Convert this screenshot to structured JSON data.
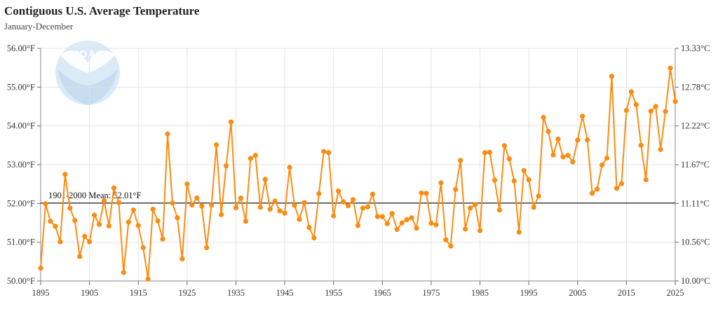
{
  "header": {
    "title": "Contiguous U.S. Average Temperature",
    "subtitle": "January-December"
  },
  "logo": {
    "text": "NOAA"
  },
  "colors": {
    "series": "#fb8c11",
    "mean_line": "#444444",
    "grid": "#e3e3e3",
    "logo": "#dbeaf7"
  },
  "chart_data": {
    "type": "line",
    "title": "Contiguous U.S. Average Temperature",
    "subtitle": "January-December",
    "x_ticks": [
      "1895",
      "1905",
      "1915",
      "1925",
      "1935",
      "1945",
      "1955",
      "1965",
      "1975",
      "1985",
      "1995",
      "2005",
      "2015",
      "2025"
    ],
    "y_left_ticks": [
      "50.00°F",
      "51.00°F",
      "52.00°F",
      "53.00°F",
      "54.00°F",
      "55.00°F",
      "56.00°F"
    ],
    "y_right_ticks": [
      "10.00°C",
      "10.56°C",
      "11.11°C",
      "11.67°C",
      "12.22°C",
      "12.78°C",
      "13.33°C"
    ],
    "xlim": [
      1895,
      2025
    ],
    "ylim": [
      50,
      56
    ],
    "grid": true,
    "mean": {
      "value": 52.01,
      "label": "1901-2000 Mean: 52.01°F"
    },
    "start_year": 1895,
    "values": [
      50.33,
      51.99,
      51.54,
      51.41,
      51.01,
      52.75,
      51.88,
      51.56,
      50.63,
      51.15,
      51.01,
      51.7,
      51.46,
      52.07,
      51.42,
      52.4,
      52.02,
      50.22,
      51.52,
      51.83,
      51.43,
      50.86,
      50.05,
      51.85,
      51.55,
      51.08,
      53.79,
      52.01,
      51.63,
      50.57,
      52.5,
      51.96,
      52.14,
      51.93,
      50.86,
      51.96,
      53.51,
      51.71,
      52.97,
      54.1,
      51.89,
      52.14,
      51.54,
      53.16,
      53.24,
      51.9,
      52.62,
      51.85,
      52.06,
      51.81,
      51.75,
      52.93,
      51.95,
      51.59,
      52.02,
      51.38,
      51.11,
      52.25,
      53.34,
      53.31,
      51.68,
      52.32,
      52.04,
      51.94,
      52.1,
      51.43,
      51.88,
      51.91,
      52.24,
      51.66,
      51.66,
      51.48,
      51.74,
      51.33,
      51.5,
      51.58,
      51.63,
      51.36,
      52.27,
      52.26,
      51.49,
      51.45,
      52.53,
      51.06,
      50.9,
      52.36,
      53.11,
      51.34,
      51.88,
      51.97,
      51.3,
      53.31,
      53.32,
      52.6,
      51.83,
      53.49,
      53.15,
      52.58,
      51.26,
      52.85,
      52.61,
      51.9,
      52.19,
      54.22,
      53.86,
      53.25,
      53.66,
      53.2,
      53.24,
      53.07,
      53.63,
      54.25,
      53.64,
      52.26,
      52.37,
      52.99,
      53.17,
      55.28,
      52.39,
      52.51,
      54.4,
      54.88,
      54.55,
      53.5,
      52.61,
      54.38,
      54.5,
      53.39,
      54.37,
      55.49,
      54.63
    ]
  }
}
